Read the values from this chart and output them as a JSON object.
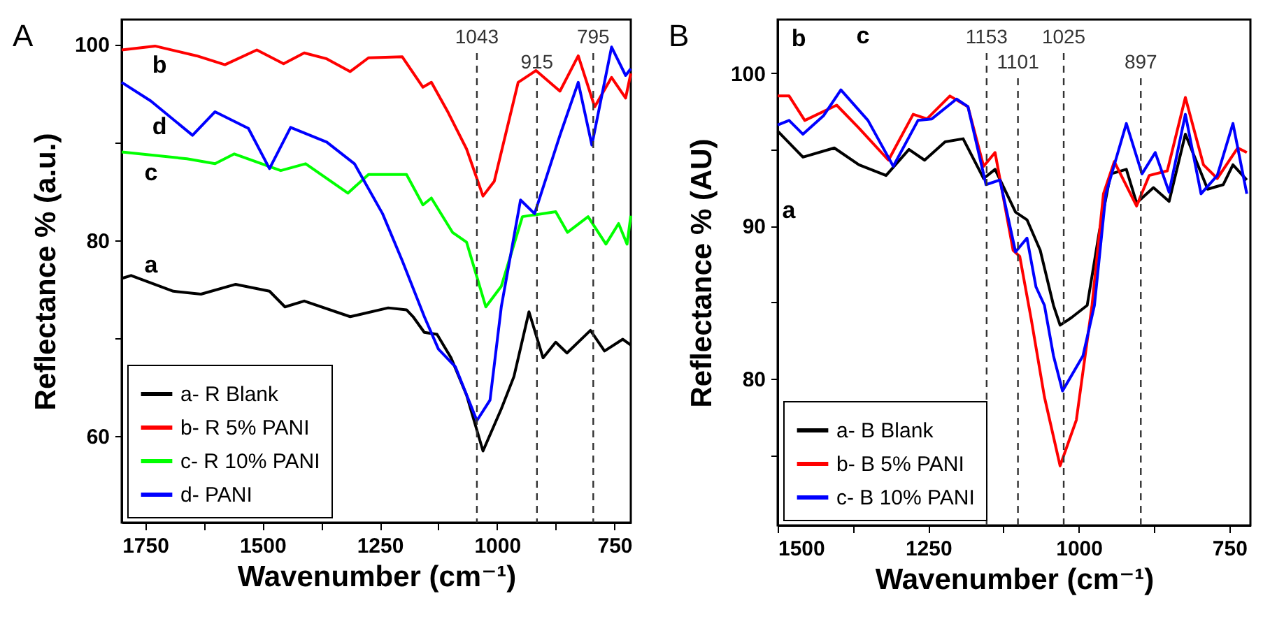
{
  "chart_data": [
    {
      "type": "line",
      "xlabel": "Wavenumber (cm⁻¹)",
      "ylabel": "Reflectance % (a.u.)",
      "xlim": [
        1800,
        715
      ],
      "ylim": [
        51.2,
        102.5
      ],
      "xticks": [
        1750,
        {
          "value": 1625,
          "label": null
        },
        1500,
        {
          "value": 1375,
          "label": null
        },
        1250,
        {
          "value": 1125,
          "label": null
        },
        1000,
        {
          "value": 875,
          "label": null
        },
        750
      ],
      "yticks": [
        60,
        {
          "value": 70,
          "label": null
        },
        80,
        {
          "value": 90,
          "label": null
        },
        100
      ],
      "legend": "bottom left",
      "grid": false,
      "series": [
        {
          "name": "a- R Blank",
          "color": "#000000",
          "x": [
            1800,
            1780,
            1690,
            1631,
            1557,
            1485,
            1452,
            1411,
            1313,
            1232,
            1193,
            1179,
            1155,
            1128,
            1098,
            1065,
            1030,
            991,
            964,
            932,
            902,
            875,
            851,
            801,
            771,
            732,
            715
          ],
          "values": [
            76.1,
            76.4,
            74.8,
            74.5,
            75.5,
            74.8,
            73.2,
            73.8,
            72.2,
            73.1,
            72.9,
            72.2,
            70.6,
            70.4,
            68.0,
            64.2,
            58.5,
            62.8,
            66.1,
            72.7,
            68.0,
            69.6,
            68.5,
            70.8,
            68.7,
            69.9,
            69.3
          ]
        },
        {
          "name": "b- R 5% PANI",
          "color": "#ff0000",
          "x": [
            1800,
            1729,
            1640,
            1580,
            1512,
            1455,
            1411,
            1363,
            1313,
            1274,
            1202,
            1158,
            1140,
            1104,
            1065,
            1030,
            1006,
            955,
            917,
            866,
            827,
            792,
            756,
            726,
            715
          ],
          "values": [
            99.4,
            99.8,
            98.8,
            97.9,
            99.4,
            98.0,
            99.1,
            98.5,
            97.2,
            98.6,
            98.7,
            95.6,
            96.1,
            93.0,
            89.3,
            84.5,
            86.0,
            96.1,
            97.3,
            95.2,
            98.8,
            93.6,
            96.6,
            94.5,
            97.0
          ]
        },
        {
          "name": "c- R 10% PANI",
          "color": "#00ff00",
          "x": [
            1800,
            1661,
            1601,
            1560,
            1461,
            1408,
            1318,
            1274,
            1193,
            1158,
            1140,
            1095,
            1065,
            1024,
            991,
            946,
            875,
            850,
            806,
            768,
            741,
            723,
            715
          ],
          "values": [
            89.0,
            88.3,
            87.8,
            88.8,
            87.1,
            87.8,
            84.8,
            86.7,
            86.7,
            83.6,
            84.3,
            80.8,
            79.8,
            73.2,
            75.3,
            82.4,
            82.9,
            80.8,
            82.4,
            79.6,
            81.7,
            79.6,
            82.5
          ]
        },
        {
          "name": "d- PANI",
          "color": "#0000ff",
          "x": [
            1800,
            1738,
            1649,
            1601,
            1530,
            1485,
            1440,
            1363,
            1304,
            1244,
            1202,
            1155,
            1125,
            1089,
            1043,
            1015,
            991,
            950,
            920,
            866,
            827,
            798,
            756,
            726,
            715
          ],
          "values": [
            96.1,
            94.2,
            90.7,
            93.1,
            91.4,
            87.3,
            91.5,
            90.0,
            87.8,
            82.7,
            77.9,
            72.2,
            68.9,
            67.1,
            61.6,
            63.7,
            73.2,
            84.1,
            82.7,
            90.7,
            96.1,
            89.7,
            99.7,
            96.8,
            97.5
          ]
        }
      ],
      "ref_lines": [
        {
          "axis": "x",
          "value": 1043,
          "label": "1043",
          "color": "#333333",
          "line_style": "dashed"
        },
        {
          "axis": "x",
          "value": 915,
          "label": "915",
          "color": "#333333",
          "line_style": "dashed"
        },
        {
          "axis": "x",
          "value": 795,
          "label": "795",
          "color": "#333333",
          "line_style": "dashed"
        }
      ],
      "annotations": [
        "A",
        "a",
        "b",
        "c",
        "d"
      ]
    },
    {
      "type": "line",
      "xlabel": "Wavenumber (cm⁻¹)",
      "ylabel": "Reflectance % (AU)",
      "xlim": [
        1500,
        715
      ],
      "ylim": [
        70.4,
        103.5
      ],
      "xticks": [
        1500,
        {
          "value": 1375,
          "label": null
        },
        1250,
        {
          "value": 1125,
          "label": null
        },
        1000,
        {
          "value": 875,
          "label": null
        },
        750
      ],
      "yticks": [
        {
          "value": 75,
          "label": null
        },
        80,
        {
          "value": 85,
          "label": null
        },
        90,
        {
          "value": 95,
          "label": null
        },
        100
      ],
      "legend": "bottom left",
      "grid": false,
      "series": [
        {
          "name": "a- B Blank",
          "color": "#000000",
          "x": [
            1500,
            1458,
            1406,
            1365,
            1320,
            1282,
            1256,
            1222,
            1192,
            1158,
            1139,
            1105,
            1086,
            1064,
            1042,
            1031,
            1012,
            986,
            966,
            947,
            921,
            904,
            876,
            850,
            823,
            786,
            760,
            744,
            721
          ],
          "values": [
            96.2,
            94.5,
            95.1,
            94.0,
            93.3,
            95.0,
            94.3,
            95.5,
            95.7,
            93.1,
            93.7,
            90.9,
            90.4,
            88.4,
            84.8,
            83.5,
            84.0,
            84.8,
            89.6,
            93.4,
            93.7,
            91.5,
            92.5,
            91.6,
            96.0,
            92.4,
            92.7,
            94.0,
            93.0
          ]
        },
        {
          "name": "b- B 5% PANI",
          "color": "#ff0000",
          "x": [
            1500,
            1481,
            1455,
            1402,
            1365,
            1316,
            1275,
            1252,
            1214,
            1184,
            1158,
            1139,
            1109,
            1098,
            1079,
            1057,
            1031,
            1004,
            978,
            959,
            941,
            904,
            883,
            853,
            823,
            793,
            770,
            736,
            721
          ],
          "values": [
            98.5,
            98.5,
            96.9,
            97.9,
            96.4,
            94.3,
            97.3,
            97.0,
            98.5,
            97.8,
            93.9,
            94.8,
            88.4,
            88.0,
            83.9,
            78.8,
            74.3,
            77.3,
            84.8,
            92.1,
            94.2,
            91.3,
            93.3,
            93.6,
            98.4,
            94.0,
            93.1,
            95.1,
            94.8
          ]
        },
        {
          "name": "c- B 10% PANI",
          "color": "#0000ff",
          "x": [
            1500,
            1481,
            1458,
            1424,
            1395,
            1350,
            1308,
            1267,
            1244,
            1203,
            1184,
            1154,
            1131,
            1105,
            1086,
            1071,
            1057,
            1042,
            1027,
            993,
            974,
            955,
            921,
            895,
            873,
            850,
            823,
            797,
            770,
            744,
            721
          ],
          "values": [
            96.6,
            96.9,
            96.0,
            97.2,
            98.9,
            96.9,
            93.9,
            96.9,
            97.0,
            98.3,
            97.8,
            92.7,
            93.0,
            88.3,
            89.2,
            86.0,
            84.8,
            81.5,
            79.2,
            81.5,
            84.8,
            92.1,
            96.7,
            93.4,
            94.8,
            92.2,
            97.3,
            92.1,
            93.3,
            96.7,
            92.1
          ]
        }
      ],
      "ref_lines": [
        {
          "axis": "x",
          "value": 1153,
          "label": "1153",
          "color": "#333333",
          "line_style": "dashed"
        },
        {
          "axis": "x",
          "value": 1101,
          "label": "1101",
          "color": "#333333",
          "line_style": "dashed"
        },
        {
          "axis": "x",
          "value": 1025,
          "label": "1025",
          "color": "#333333",
          "line_style": "dashed"
        },
        {
          "axis": "x",
          "value": 897,
          "label": "897",
          "color": "#333333",
          "line_style": "dashed"
        }
      ],
      "annotations": [
        "B",
        "a",
        "b",
        "c"
      ]
    }
  ]
}
